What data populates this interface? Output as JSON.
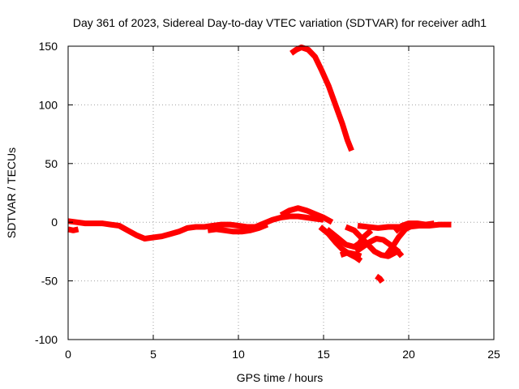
{
  "chart_data": {
    "type": "scatter",
    "title": "Day 361 of 2023, Sidereal Day-to-day VTEC variation (SDTVAR) for receiver adh1",
    "xlabel": "GPS time / hours",
    "ylabel": "SDTVAR / TECUs",
    "xlim": [
      0,
      25
    ],
    "ylim": [
      -100,
      150
    ],
    "xticks": [
      0,
      5,
      10,
      15,
      20,
      25
    ],
    "yticks": [
      -100,
      -50,
      0,
      50,
      100,
      150
    ],
    "grid": true,
    "color": "#ff0000",
    "series": [
      {
        "name": "main-track",
        "points": [
          [
            0,
            1
          ],
          [
            0.5,
            0
          ],
          [
            1,
            -1
          ],
          [
            1.5,
            -1
          ],
          [
            2,
            -1
          ],
          [
            2.5,
            -2
          ],
          [
            3,
            -3
          ],
          [
            3.5,
            -7
          ],
          [
            4,
            -11
          ],
          [
            4.5,
            -14
          ],
          [
            5,
            -13
          ],
          [
            5.5,
            -12
          ],
          [
            6,
            -10
          ],
          [
            6.5,
            -8
          ],
          [
            7,
            -5
          ],
          [
            7.5,
            -4
          ],
          [
            8,
            -4
          ],
          [
            8.5,
            -3
          ],
          [
            9,
            -2
          ],
          [
            9.5,
            -2
          ],
          [
            10,
            -3
          ],
          [
            10.5,
            -4
          ],
          [
            11,
            -4
          ],
          [
            11.5,
            -1
          ],
          [
            12,
            2
          ],
          [
            12.5,
            4
          ],
          [
            13,
            5
          ],
          [
            13.5,
            5
          ],
          [
            14,
            4
          ],
          [
            14.5,
            3
          ],
          [
            15,
            2
          ]
        ]
      },
      {
        "name": "main-track-band",
        "points": [
          [
            8.2,
            -7
          ],
          [
            8.7,
            -6
          ],
          [
            9.2,
            -7
          ],
          [
            9.7,
            -8
          ],
          [
            10.2,
            -8
          ],
          [
            10.7,
            -7
          ],
          [
            11.2,
            -5
          ],
          [
            11.7,
            -2
          ]
        ]
      },
      {
        "name": "start-segment",
        "points": [
          [
            0,
            -6
          ],
          [
            0.3,
            -7
          ],
          [
            0.6,
            -6
          ]
        ]
      },
      {
        "name": "rise-arc",
        "points": [
          [
            12.5,
            6
          ],
          [
            13,
            10
          ],
          [
            13.5,
            12
          ],
          [
            14,
            10
          ],
          [
            14.5,
            7
          ],
          [
            15,
            4
          ],
          [
            15.5,
            0
          ]
        ]
      },
      {
        "name": "high-arc",
        "points": [
          [
            13.1,
            144
          ],
          [
            13.4,
            147
          ],
          [
            13.7,
            149
          ],
          [
            14.1,
            147
          ],
          [
            14.5,
            141
          ],
          [
            14.9,
            129
          ],
          [
            15.3,
            116
          ],
          [
            15.7,
            100
          ],
          [
            16.1,
            84
          ],
          [
            16.4,
            70
          ],
          [
            16.65,
            61
          ]
        ]
      },
      {
        "name": "arc-a",
        "points": [
          [
            14.8,
            -4
          ],
          [
            15.3,
            -10
          ],
          [
            15.7,
            -17
          ],
          [
            16.1,
            -23
          ],
          [
            16.5,
            -27
          ],
          [
            16.9,
            -30
          ],
          [
            17.2,
            -33
          ]
        ]
      },
      {
        "name": "arc-b",
        "points": [
          [
            15.2,
            -6
          ],
          [
            15.8,
            -13
          ],
          [
            16.3,
            -19
          ],
          [
            16.8,
            -21
          ],
          [
            17.1,
            -18
          ],
          [
            17.4,
            -12
          ],
          [
            17.8,
            -7
          ]
        ]
      },
      {
        "name": "arc-c",
        "points": [
          [
            16.3,
            -4
          ],
          [
            16.8,
            -7
          ],
          [
            17.2,
            -13
          ],
          [
            17.6,
            -19
          ],
          [
            18,
            -25
          ],
          [
            18.4,
            -28
          ],
          [
            18.8,
            -29
          ],
          [
            19.2,
            -26
          ],
          [
            19.4,
            -22
          ]
        ]
      },
      {
        "name": "arc-d",
        "points": [
          [
            16.9,
            -25
          ],
          [
            17.3,
            -21
          ],
          [
            17.7,
            -17
          ],
          [
            18.1,
            -14
          ],
          [
            18.5,
            -15
          ],
          [
            18.9,
            -19
          ],
          [
            19.3,
            -24
          ],
          [
            19.6,
            -29
          ]
        ]
      },
      {
        "name": "arc-e",
        "points": [
          [
            18.6,
            -30
          ],
          [
            19,
            -22
          ],
          [
            19.4,
            -13
          ],
          [
            19.8,
            -6
          ],
          [
            20.2,
            -3
          ]
        ]
      },
      {
        "name": "arc-f",
        "points": [
          [
            16,
            -28
          ],
          [
            16.4,
            -26
          ],
          [
            16.8,
            -27
          ],
          [
            17.2,
            -29
          ]
        ]
      },
      {
        "name": "arc-g",
        "points": [
          [
            17,
            -3
          ],
          [
            17.6,
            -4
          ],
          [
            18.2,
            -5
          ],
          [
            18.8,
            -4
          ],
          [
            19.4,
            -4
          ],
          [
            20,
            -4
          ],
          [
            20.6,
            -3
          ],
          [
            21.2,
            -3
          ],
          [
            21.8,
            -2
          ],
          [
            22.5,
            -2
          ]
        ]
      },
      {
        "name": "arc-h",
        "points": [
          [
            19.2,
            -8
          ],
          [
            19.6,
            -3
          ],
          [
            20,
            -1
          ],
          [
            20.5,
            -1
          ],
          [
            21,
            -2
          ],
          [
            21.5,
            -1
          ]
        ]
      },
      {
        "name": "isolated-segment",
        "points": [
          [
            18.1,
            -46
          ],
          [
            18.3,
            -48
          ],
          [
            18.45,
            -51
          ]
        ]
      }
    ]
  }
}
